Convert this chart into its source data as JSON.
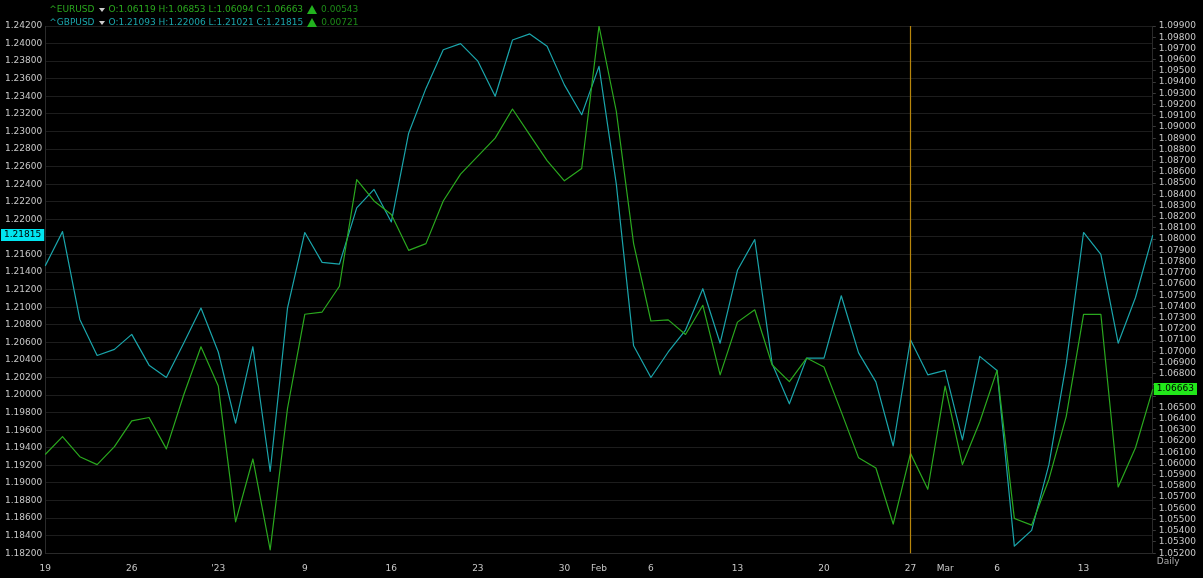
{
  "chart_data": {
    "type": "line",
    "categories": [
      "19",
      null,
      null,
      null,
      null,
      "26",
      null,
      null,
      null,
      null,
      "'23",
      null,
      null,
      null,
      null,
      "9",
      null,
      null,
      null,
      null,
      "16",
      null,
      null,
      null,
      null,
      "23",
      null,
      null,
      null,
      null,
      "30",
      null,
      "Feb",
      null,
      null,
      "6",
      null,
      null,
      null,
      null,
      "13",
      null,
      null,
      null,
      null,
      "20",
      null,
      null,
      null,
      null,
      "27",
      null,
      "Mar",
      null,
      null,
      "6",
      null,
      null,
      null,
      null,
      "13",
      null,
      null,
      null,
      null
    ],
    "series": [
      {
        "name": "^EURUSD",
        "axis": "y2",
        "color": "#2aa81e",
        "values": [
          1.0608,
          1.0624,
          1.0606,
          1.0599,
          1.0615,
          1.0638,
          1.0641,
          1.0613,
          1.0661,
          1.0704,
          1.0669,
          1.0548,
          1.0604,
          1.0523,
          1.0649,
          1.0733,
          1.0735,
          1.0758,
          1.0853,
          1.0834,
          1.0822,
          1.079,
          1.0796,
          1.0834,
          1.0858,
          1.0874,
          1.089,
          1.0916,
          1.0893,
          1.087,
          1.0852,
          1.0863,
          1.099,
          1.0914,
          1.0796,
          1.0727,
          1.0728,
          1.0715,
          1.0741,
          1.0679,
          1.0726,
          1.0737,
          1.0688,
          1.0673,
          1.0694,
          1.0686,
          1.0646,
          1.0605,
          1.0596,
          1.0546,
          1.0609,
          1.0577,
          1.0669,
          1.0599,
          1.0637,
          1.0683,
          1.0551,
          1.0545,
          1.0586,
          1.0642,
          1.0733,
          1.0733,
          1.0579,
          1.0614,
          1.06663
        ],
        "value_labels": [
          null,
          null,
          null,
          null,
          null,
          null,
          null,
          null,
          null,
          null,
          null,
          null,
          null,
          null,
          null,
          null,
          null,
          null,
          null,
          null,
          null,
          null,
          null,
          null,
          null,
          null,
          null,
          null,
          null,
          null,
          null,
          null,
          null,
          null,
          null,
          null,
          null,
          null,
          null,
          null,
          null,
          null,
          null,
          null,
          null,
          null,
          null,
          null,
          null,
          null,
          null,
          null,
          null,
          null,
          null,
          null,
          null,
          null,
          null,
          null,
          null,
          null,
          null,
          null,
          "1.06663"
        ]
      },
      {
        "name": "^GBPUSD",
        "axis": "y",
        "color": "#1aa5ab",
        "values": [
          1.2147,
          1.2186,
          1.2086,
          1.2045,
          1.2052,
          1.2069,
          1.2034,
          1.202,
          1.2059,
          1.2099,
          1.2049,
          1.1968,
          1.2055,
          1.1913,
          1.2099,
          1.2185,
          1.2151,
          1.2149,
          1.2213,
          1.2234,
          1.2197,
          1.2298,
          1.2349,
          1.2393,
          1.24,
          1.238,
          1.234,
          1.2404,
          1.2411,
          1.2397,
          1.2353,
          1.2319,
          1.2374,
          1.224,
          1.2056,
          1.202,
          1.2049,
          1.2074,
          1.2121,
          1.2059,
          1.2142,
          1.2177,
          1.2036,
          1.199,
          1.2042,
          1.2042,
          1.2113,
          1.2048,
          1.2015,
          1.1942,
          1.2063,
          1.2023,
          1.2028,
          1.1949,
          1.2044,
          1.2028,
          1.1828,
          1.1846,
          1.1921,
          1.2036,
          1.2185,
          1.216,
          1.2059,
          1.2111,
          1.2182
        ]
      }
    ],
    "ylim": [
      1.182,
      1.242
    ],
    "yticks": [
      {
        "value": 1.182,
        "label": "1.18200"
      },
      {
        "value": 1.184,
        "label": "1.18400"
      },
      {
        "value": 1.186,
        "label": "1.18600"
      },
      {
        "value": 1.188,
        "label": "1.18800"
      },
      {
        "value": 1.19,
        "label": "1.19000"
      },
      {
        "value": 1.192,
        "label": "1.19200"
      },
      {
        "value": 1.194,
        "label": "1.19400"
      },
      {
        "value": 1.196,
        "label": "1.19600"
      },
      {
        "value": 1.198,
        "label": "1.19800"
      },
      {
        "value": 1.2,
        "label": "1.20000"
      },
      {
        "value": 1.202,
        "label": "1.20200"
      },
      {
        "value": 1.204,
        "label": "1.20400"
      },
      {
        "value": 1.206,
        "label": "1.20600"
      },
      {
        "value": 1.208,
        "label": "1.20800"
      },
      {
        "value": 1.21,
        "label": "1.21000"
      },
      {
        "value": 1.212,
        "label": "1.21200"
      },
      {
        "value": 1.214,
        "label": "1.21400"
      },
      {
        "value": 1.216,
        "label": "1.21600"
      },
      {
        "value": 1.218,
        "label": null
      },
      {
        "value": 1.22,
        "label": "1.22000"
      },
      {
        "value": 1.222,
        "label": "1.22200"
      },
      {
        "value": 1.224,
        "label": "1.22400"
      },
      {
        "value": 1.226,
        "label": "1.22600"
      },
      {
        "value": 1.228,
        "label": "1.22800"
      },
      {
        "value": 1.23,
        "label": "1.23000"
      },
      {
        "value": 1.232,
        "label": "1.23200"
      },
      {
        "value": 1.234,
        "label": "1.23400"
      },
      {
        "value": 1.236,
        "label": "1.23600"
      },
      {
        "value": 1.238,
        "label": "1.23800"
      },
      {
        "value": 1.24,
        "label": "1.24000"
      },
      {
        "value": 1.242,
        "label": "1.24200"
      }
    ],
    "y2lim": [
      1.052,
      1.099
    ],
    "y2ticks": [
      {
        "value": 1.052,
        "label": "1.05200"
      },
      {
        "value": 1.053,
        "label": "1.05300"
      },
      {
        "value": 1.054,
        "label": "1.05400"
      },
      {
        "value": 1.055,
        "label": "1.05500"
      },
      {
        "value": 1.056,
        "label": "1.05600"
      },
      {
        "value": 1.057,
        "label": "1.05700"
      },
      {
        "value": 1.058,
        "label": "1.05800"
      },
      {
        "value": 1.059,
        "label": "1.05900"
      },
      {
        "value": 1.06,
        "label": "1.06000"
      },
      {
        "value": 1.061,
        "label": "1.06100"
      },
      {
        "value": 1.062,
        "label": "1.06200"
      },
      {
        "value": 1.063,
        "label": "1.06300"
      },
      {
        "value": 1.064,
        "label": "1.06400"
      },
      {
        "value": 1.065,
        "label": "1.06500"
      },
      {
        "value": 1.066,
        "label": null
      },
      {
        "value": 1.067,
        "label": null
      },
      {
        "value": 1.068,
        "label": "1.06800"
      },
      {
        "value": 1.069,
        "label": "1.06900"
      },
      {
        "value": 1.07,
        "label": "1.07000"
      },
      {
        "value": 1.071,
        "label": "1.07100"
      },
      {
        "value": 1.072,
        "label": "1.07200"
      },
      {
        "value": 1.073,
        "label": "1.07300"
      },
      {
        "value": 1.074,
        "label": "1.07400"
      },
      {
        "value": 1.075,
        "label": "1.07500"
      },
      {
        "value": 1.076,
        "label": "1.07600"
      },
      {
        "value": 1.077,
        "label": "1.07700"
      },
      {
        "value": 1.078,
        "label": "1.07800"
      },
      {
        "value": 1.079,
        "label": "1.07900"
      },
      {
        "value": 1.08,
        "label": "1.08000"
      },
      {
        "value": 1.081,
        "label": "1.08100"
      },
      {
        "value": 1.082,
        "label": "1.08200"
      },
      {
        "value": 1.083,
        "label": "1.08300"
      },
      {
        "value": 1.084,
        "label": "1.08400"
      },
      {
        "value": 1.085,
        "label": "1.08500"
      },
      {
        "value": 1.086,
        "label": "1.08600"
      },
      {
        "value": 1.087,
        "label": "1.08700"
      },
      {
        "value": 1.088,
        "label": "1.08800"
      },
      {
        "value": 1.089,
        "label": "1.08900"
      },
      {
        "value": 1.09,
        "label": "1.09000"
      },
      {
        "value": 1.091,
        "label": "1.09100"
      },
      {
        "value": 1.092,
        "label": "1.09200"
      },
      {
        "value": 1.093,
        "label": "1.09300"
      },
      {
        "value": 1.094,
        "label": "1.09400"
      },
      {
        "value": 1.095,
        "label": "1.09500"
      },
      {
        "value": 1.096,
        "label": "1.09600"
      },
      {
        "value": 1.097,
        "label": "1.09700"
      },
      {
        "value": 1.098,
        "label": "1.09800"
      },
      {
        "value": 1.099,
        "label": "1.09900"
      }
    ],
    "ref_lines": [
      {
        "axis": "x",
        "value": "27",
        "color": "#b8860b"
      }
    ],
    "annotations": [
      "O:1.06119 H:1.06853 L:1.06094 C:1.06663",
      "0.00543",
      "O:1.21093 H:1.22006 L:1.21021 C:1.21815",
      "0.00721",
      "Daily",
      "1.21815"
    ],
    "grid": "y",
    "legend": "top left",
    "marker": "none",
    "line_style": "solid"
  }
}
